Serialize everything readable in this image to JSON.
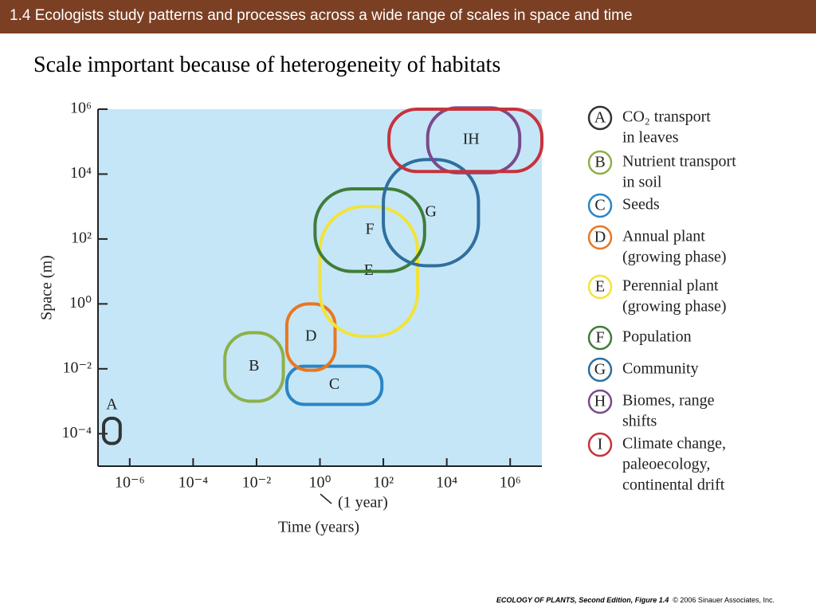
{
  "header": {
    "title": "1.4 Ecologists study patterns and processes across a wide range of scales in space and time"
  },
  "subtitle": "Scale important because of heterogeneity of habitats",
  "chart_data": {
    "type": "range",
    "xlabel": "Time (years)",
    "ylabel": "Space (m)",
    "annotation": "(1 year)",
    "log_x": true,
    "log_y": true,
    "xlim": [
      1e-07,
      10000000.0
    ],
    "ylim": [
      1e-05,
      1000000
    ],
    "xticks": [
      {
        "value": 1e-06,
        "label": "10⁻⁶"
      },
      {
        "value": 0.0001,
        "label": "10⁻⁴"
      },
      {
        "value": 0.01,
        "label": "10⁻²"
      },
      {
        "value": 1,
        "label": "10⁰"
      },
      {
        "value": 100,
        "label": "10²"
      },
      {
        "value": 10000,
        "label": "10⁴"
      },
      {
        "value": 1000000,
        "label": "10⁶"
      }
    ],
    "yticks": [
      {
        "value": 0.0001,
        "label": "10⁻⁴"
      },
      {
        "value": 0.01,
        "label": "10⁻²"
      },
      {
        "value": 1,
        "label": "10⁰"
      },
      {
        "value": 100,
        "label": "10²"
      },
      {
        "value": 10000,
        "label": "10⁴"
      },
      {
        "value": 1000000,
        "label": "10⁶"
      }
    ],
    "regions": [
      {
        "name": "A",
        "description": [
          "CO₂ transport",
          "in leaves"
        ],
        "color": "#333333",
        "x": [
          1.5e-07,
          5e-07
        ],
        "y": [
          5e-05,
          0.0003
        ]
      },
      {
        "name": "B",
        "description": [
          "Nutrient transport",
          "in soil"
        ],
        "color": "#8db04a",
        "x": [
          0.001,
          0.07
        ],
        "y": [
          0.001,
          0.13
        ]
      },
      {
        "name": "C",
        "description": [
          "Seeds"
        ],
        "color": "#2a85c5",
        "x": [
          0.09,
          90
        ],
        "y": [
          0.0008,
          0.012
        ]
      },
      {
        "name": "D",
        "description": [
          "Annual plant",
          "(growing phase)"
        ],
        "color": "#e87722",
        "x": [
          0.09,
          3
        ],
        "y": [
          0.009,
          1
        ]
      },
      {
        "name": "E",
        "description": [
          "Perennial plant",
          "(growing phase)"
        ],
        "color": "#f2e33a",
        "x": [
          1,
          1200
        ],
        "y": [
          0.1,
          1000
        ]
      },
      {
        "name": "F",
        "description": [
          "Population"
        ],
        "color": "#3f7d3a",
        "x": [
          0.7,
          2000
        ],
        "y": [
          10,
          3500
        ]
      },
      {
        "name": "G",
        "description": [
          "Community"
        ],
        "color": "#2e6f9e",
        "x": [
          100,
          100000
        ],
        "y": [
          15,
          28000
        ]
      },
      {
        "name": "H",
        "description": [
          "Biomes, range",
          "shifts"
        ],
        "color": "#7a4a8c",
        "x": [
          2500,
          2000000
        ],
        "y": [
          11000,
          1100000
        ]
      },
      {
        "name": "I",
        "description": [
          "Climate change,",
          "paleoecology,",
          "continental drift"
        ],
        "color": "#c8323c",
        "x": [
          150,
          10000000
        ],
        "y": [
          12000,
          1000000
        ]
      }
    ]
  },
  "footer": {
    "citation": "ECOLOGY OF PLANTS, Second Edition, Figure 1.4",
    "copyright": "© 2006 Sinauer Associates, Inc."
  }
}
